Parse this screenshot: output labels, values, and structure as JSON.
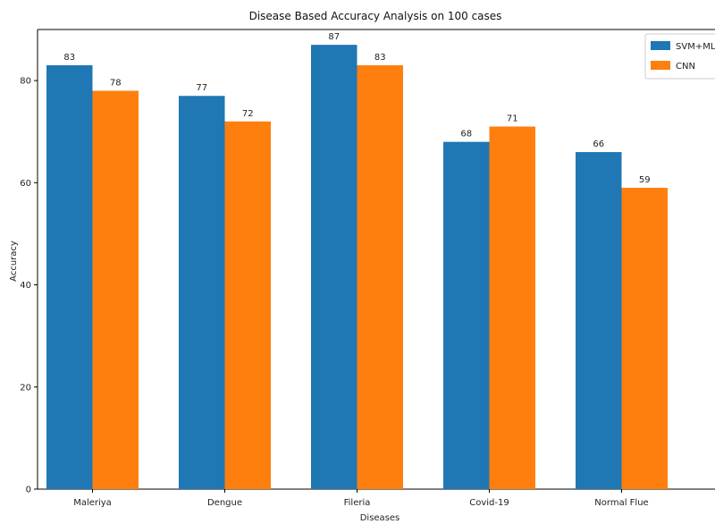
{
  "chart_data": {
    "type": "bar",
    "title": "Disease Based Accuracy Analysis on 100 cases",
    "xlabel": "Diseases",
    "ylabel": "Accuracy",
    "categories": [
      "Maleriya",
      "Dengue",
      "Fileria",
      "Covid-19",
      "Normal Flue"
    ],
    "series": [
      {
        "name": "SVM+ML/R",
        "color": "#1f77b4",
        "values": [
          83,
          77,
          87,
          68,
          66
        ]
      },
      {
        "name": "CNN",
        "color": "#ff7f0e",
        "values": [
          78,
          72,
          83,
          71,
          59
        ]
      }
    ],
    "ylim": [
      0,
      90
    ],
    "yticks": [
      0,
      20,
      40,
      60,
      80
    ],
    "grid": false,
    "legend_position": "top-right"
  }
}
